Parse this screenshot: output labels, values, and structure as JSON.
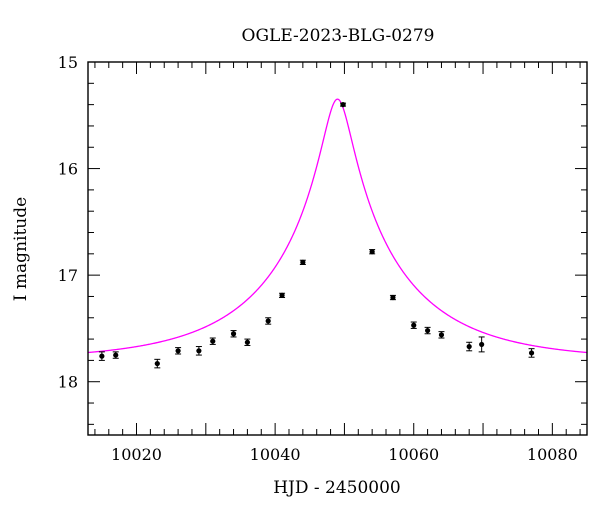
{
  "chart_data": {
    "type": "scatter",
    "title": "OGLE-2023-BLG-0279",
    "xlabel": "HJD - 2450000",
    "ylabel": "I magnitude",
    "xlim": [
      10013,
      10085
    ],
    "ylim": [
      18.5,
      15
    ],
    "y_inverted": true,
    "grid": false,
    "legend": "none",
    "x_ticks": [
      10020,
      10040,
      10060,
      10080
    ],
    "y_ticks": [
      15,
      16,
      17,
      18
    ],
    "colors": {
      "model": "#ff00ff",
      "points": "#000000"
    },
    "series": [
      {
        "type": "scatter",
        "x": [
          10015,
          10017,
          10023,
          10026,
          10029,
          10031,
          10034,
          10036,
          10039,
          10041,
          10044,
          10049.8,
          10054,
          10057,
          10060,
          10062,
          10064,
          10068,
          10069.8,
          10077
        ],
        "y": [
          17.76,
          17.75,
          17.83,
          17.71,
          17.71,
          17.62,
          17.55,
          17.63,
          17.43,
          17.19,
          16.88,
          15.4,
          16.78,
          17.21,
          17.47,
          17.52,
          17.56,
          17.67,
          17.65,
          17.73
        ],
        "yerr": [
          0.04,
          0.03,
          0.04,
          0.03,
          0.04,
          0.03,
          0.03,
          0.03,
          0.03,
          0.02,
          0.02,
          0.01,
          0.02,
          0.02,
          0.03,
          0.03,
          0.03,
          0.04,
          0.07,
          0.04
        ]
      },
      {
        "type": "line",
        "model": {
          "t0": 10049.0,
          "u0": 0.105,
          "tE": 19.0,
          "baseline_mag": 17.8
        }
      }
    ]
  }
}
